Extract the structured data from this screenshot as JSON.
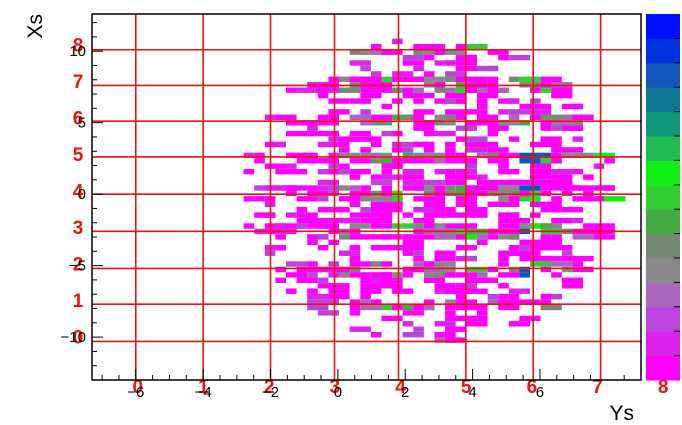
{
  "chart_data": {
    "type": "heatmap",
    "title": "",
    "xlabel": "Ys",
    "ylabel": "Xs",
    "xlim": [
      -7.3,
      9.0
    ],
    "ylim": [
      -13.0,
      12.6
    ],
    "x_ticks": [
      "−6",
      "−4",
      "−2",
      "0",
      "2",
      "4",
      "6"
    ],
    "x_tick_values": [
      -6,
      -4,
      -2,
      0,
      2,
      4,
      6
    ],
    "y_ticks": [
      "−10",
      "−5",
      "0",
      "5",
      "10"
    ],
    "y_tick_values": [
      -10,
      -5,
      0,
      5,
      10
    ],
    "grid_overlay": {
      "color": "#ee1111",
      "vertical_lines_x": [
        -6.0,
        -4.0,
        -2.0,
        -0.1,
        1.8,
        3.8,
        5.8,
        7.8
      ],
      "horizontal_lines_y": [
        -10.3,
        -7.7,
        -5.2,
        -2.6,
        0.0,
        2.6,
        5.1,
        7.6,
        10.1
      ],
      "column_labels": [
        "0",
        "1",
        "2",
        "3",
        "4",
        "5",
        "6",
        "7",
        "8"
      ],
      "row_labels": [
        "0",
        "1",
        "2",
        "3",
        "4",
        "5",
        "6",
        "7",
        "8"
      ]
    },
    "x_range_filled": [
      -2.8,
      8.2
    ],
    "y_range_filled": [
      -10.4,
      10.9
    ],
    "palette": [
      "#ff00ff",
      "#dd22ee",
      "#bb44dd",
      "#aa66bb",
      "#888888",
      "#778877",
      "#44aa44",
      "#33cc33",
      "#11ee11",
      "#22bb55",
      "#119977",
      "#117799",
      "#1155bb",
      "#0033dd",
      "#0011ff"
    ]
  }
}
